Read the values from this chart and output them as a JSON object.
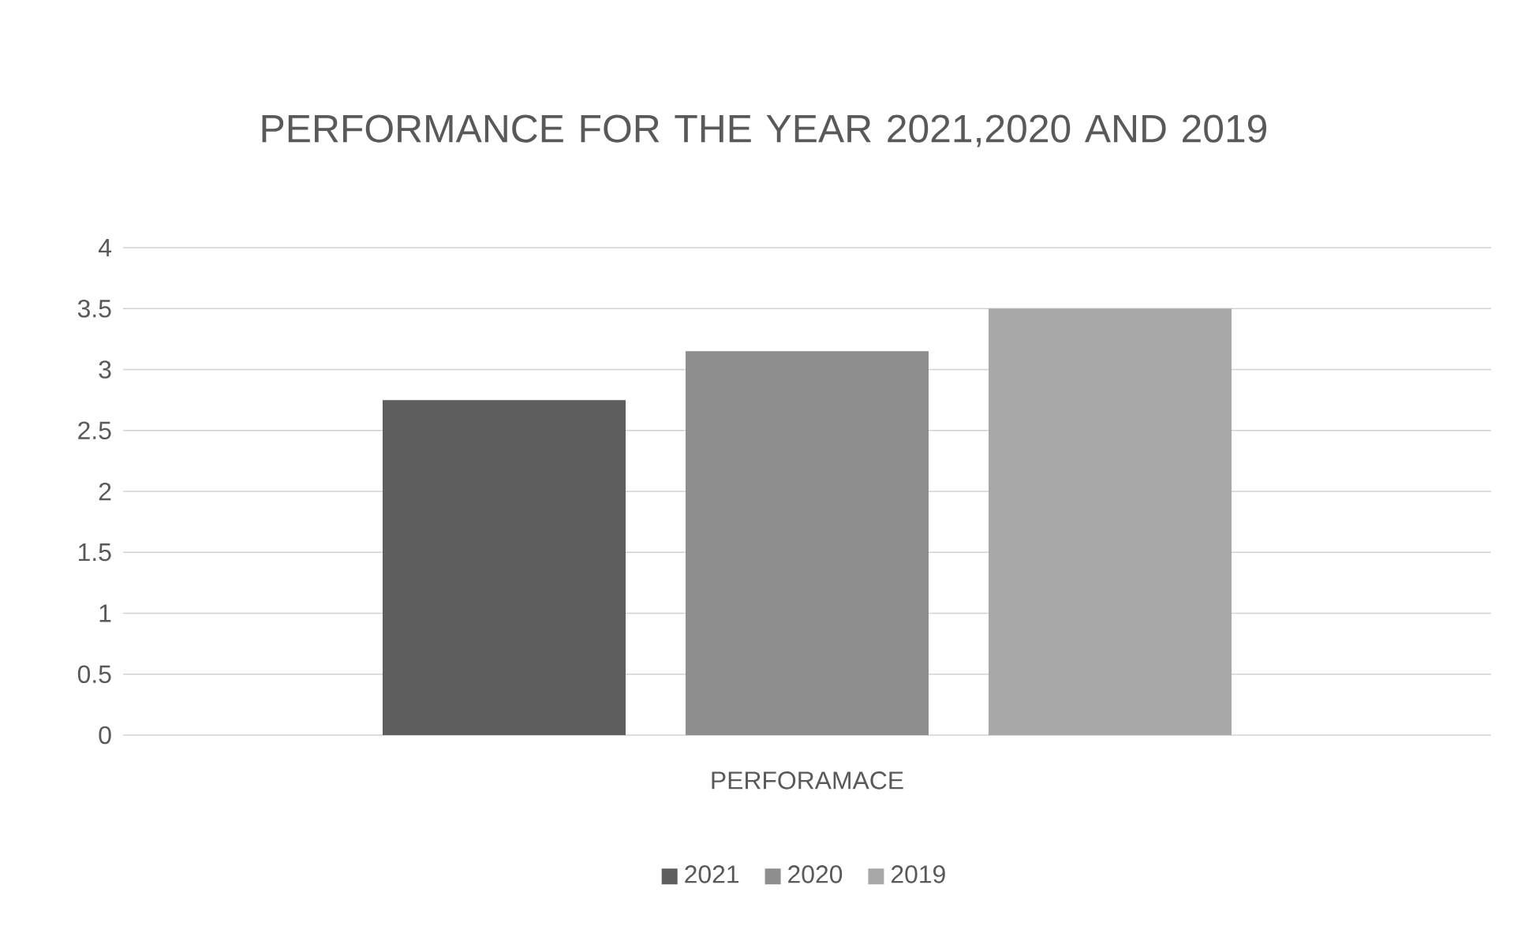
{
  "chart_data": {
    "type": "bar",
    "title": "PERFORMANCE FOR THE YEAR 2021,2020 AND 2019",
    "categories": [
      "PERFORAMACE"
    ],
    "series": [
      {
        "name": "2021",
        "color": "#5e5e5e",
        "values": [
          2.75
        ]
      },
      {
        "name": "2020",
        "color": "#8e8e8e",
        "values": [
          3.15
        ]
      },
      {
        "name": "2019",
        "color": "#a8a8a8",
        "values": [
          3.5
        ]
      }
    ],
    "ylim": [
      0,
      4
    ],
    "yticks": [
      0,
      0.5,
      1,
      1.5,
      2,
      2.5,
      3,
      3.5,
      4
    ],
    "grid": "y",
    "legend": "bottom"
  }
}
